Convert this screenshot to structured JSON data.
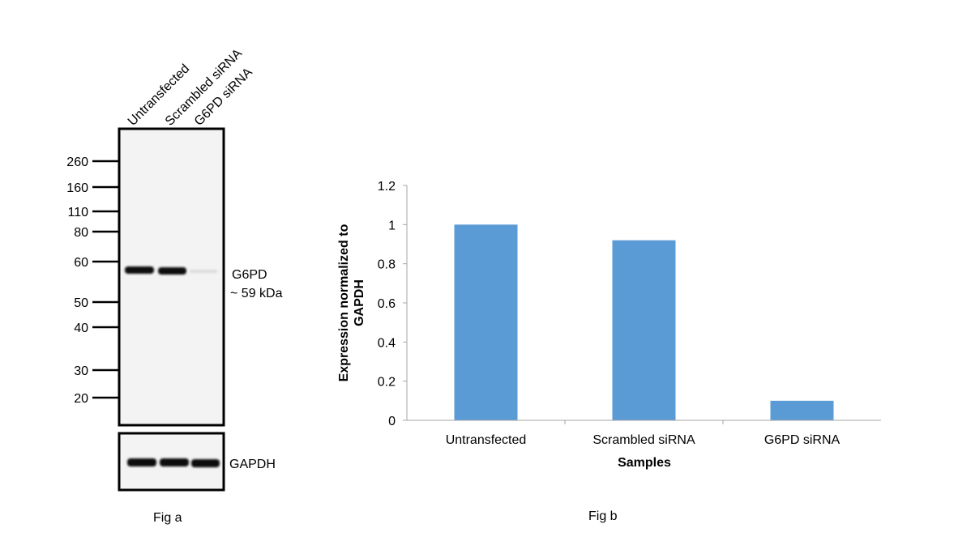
{
  "western_blot": {
    "lanes": [
      "Untransfected",
      "Scrambled siRNA",
      "G6PD siRNA"
    ],
    "markers": [
      "260",
      "160",
      "110",
      "80",
      "60",
      "50",
      "40",
      "30",
      "20"
    ],
    "target_label": "G6PD",
    "target_size": "~ 59 kDa",
    "loading_control": "GAPDH",
    "caption": "Fig a"
  },
  "chart_data": {
    "type": "bar",
    "categories": [
      "Untransfected",
      "Scrambled siRNA",
      "G6PD siRNA"
    ],
    "values": [
      1.0,
      0.92,
      0.1
    ],
    "title": "",
    "xlabel": "Samples",
    "ylabel": "Expression normalized to GAPDH",
    "ylabel_lines": [
      "Expression  normalized to",
      "GAPDH"
    ],
    "ylim": [
      0,
      1.2
    ],
    "yticks": [
      0,
      0.2,
      0.4,
      0.6,
      0.8,
      1,
      1.2
    ],
    "ytick_labels": [
      "0",
      "0.2",
      "0.4",
      "0.6",
      "0.8",
      "1",
      "1.2"
    ],
    "grid": false,
    "legend": "none",
    "bar_color": "#5b9bd5",
    "caption": "Fig b"
  }
}
